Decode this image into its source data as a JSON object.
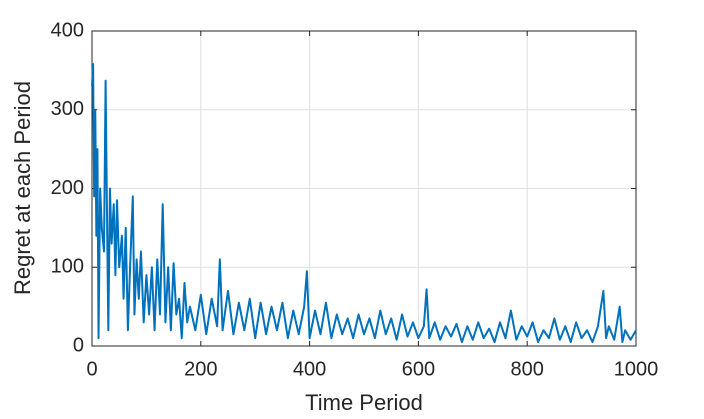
{
  "chart_data": {
    "type": "line",
    "xlabel": "Time Period",
    "ylabel": "Regret at each Period",
    "x": [
      0,
      2,
      4,
      6,
      8,
      10,
      12,
      15,
      18,
      22,
      25,
      28,
      30,
      33,
      36,
      40,
      43,
      46,
      50,
      55,
      58,
      62,
      66,
      70,
      75,
      78,
      82,
      86,
      90,
      95,
      100,
      105,
      110,
      115,
      120,
      125,
      130,
      135,
      140,
      145,
      150,
      155,
      160,
      165,
      170,
      175,
      180,
      190,
      200,
      210,
      220,
      230,
      235,
      240,
      250,
      260,
      270,
      280,
      290,
      300,
      310,
      320,
      330,
      340,
      350,
      360,
      370,
      380,
      390,
      395,
      400,
      410,
      420,
      430,
      440,
      450,
      460,
      470,
      480,
      490,
      500,
      510,
      520,
      530,
      540,
      550,
      560,
      570,
      580,
      590,
      600,
      610,
      615,
      620,
      630,
      640,
      650,
      660,
      670,
      680,
      690,
      700,
      710,
      720,
      730,
      740,
      750,
      760,
      770,
      780,
      790,
      800,
      810,
      820,
      830,
      840,
      850,
      860,
      870,
      880,
      890,
      900,
      910,
      920,
      930,
      940,
      945,
      950,
      960,
      970,
      975,
      980,
      990,
      1000
    ],
    "series": [
      {
        "color": "#0072bd",
        "values": [
          330,
          358,
          190,
          300,
          140,
          250,
          10,
          200,
          150,
          120,
          337,
          140,
          20,
          200,
          130,
          180,
          90,
          185,
          100,
          140,
          60,
          150,
          20,
          100,
          190,
          40,
          110,
          60,
          120,
          30,
          90,
          40,
          100,
          20,
          110,
          40,
          180,
          30,
          100,
          20,
          105,
          40,
          60,
          10,
          80,
          30,
          50,
          20,
          65,
          15,
          60,
          25,
          110,
          20,
          70,
          15,
          55,
          20,
          60,
          10,
          55,
          15,
          50,
          20,
          55,
          10,
          45,
          15,
          50,
          95,
          10,
          45,
          15,
          55,
          10,
          40,
          15,
          35,
          10,
          40,
          15,
          35,
          10,
          45,
          15,
          35,
          8,
          40,
          12,
          30,
          10,
          25,
          72,
          10,
          30,
          8,
          25,
          12,
          28,
          5,
          25,
          8,
          30,
          10,
          22,
          5,
          30,
          10,
          45,
          8,
          25,
          12,
          30,
          5,
          20,
          10,
          35,
          8,
          25,
          5,
          30,
          10,
          20,
          5,
          25,
          70,
          10,
          25,
          8,
          50,
          5,
          20,
          8,
          20
        ]
      }
    ],
    "xlim": [
      0,
      1000
    ],
    "xticks": [
      0,
      200,
      400,
      600,
      800,
      1000
    ],
    "ylim": [
      0,
      400
    ],
    "yticks": [
      0,
      100,
      200,
      300,
      400
    ],
    "grid": true
  }
}
